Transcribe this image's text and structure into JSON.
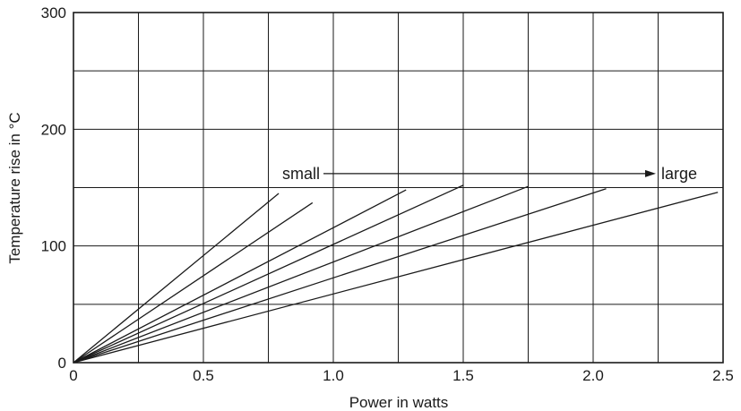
{
  "chart_data": {
    "type": "line",
    "title": "",
    "xlabel": "Power in watts",
    "ylabel": "Temperature rise in °C",
    "xlim": [
      0,
      2.5
    ],
    "ylim": [
      0,
      300
    ],
    "x_ticks": [
      "0",
      "0.5",
      "1.0",
      "1.5",
      "2.0",
      "2.5"
    ],
    "y_ticks": [
      "0",
      "100",
      "200",
      "300"
    ],
    "grid": true,
    "legend": "none",
    "series": [
      {
        "x": [
          0,
          0.79
        ],
        "y": [
          0,
          145
        ]
      },
      {
        "x": [
          0,
          0.92
        ],
        "y": [
          0,
          137
        ]
      },
      {
        "x": [
          0,
          1.28
        ],
        "y": [
          0,
          148
        ]
      },
      {
        "x": [
          0,
          1.5
        ],
        "y": [
          0,
          152
        ]
      },
      {
        "x": [
          0,
          1.75
        ],
        "y": [
          0,
          151
        ]
      },
      {
        "x": [
          0,
          2.05
        ],
        "y": [
          0,
          149
        ]
      },
      {
        "x": [
          0,
          2.48
        ],
        "y": [
          0,
          146
        ]
      }
    ],
    "annotations": {
      "small_label": "small",
      "large_label": "large",
      "arrow_y": 162
    }
  }
}
